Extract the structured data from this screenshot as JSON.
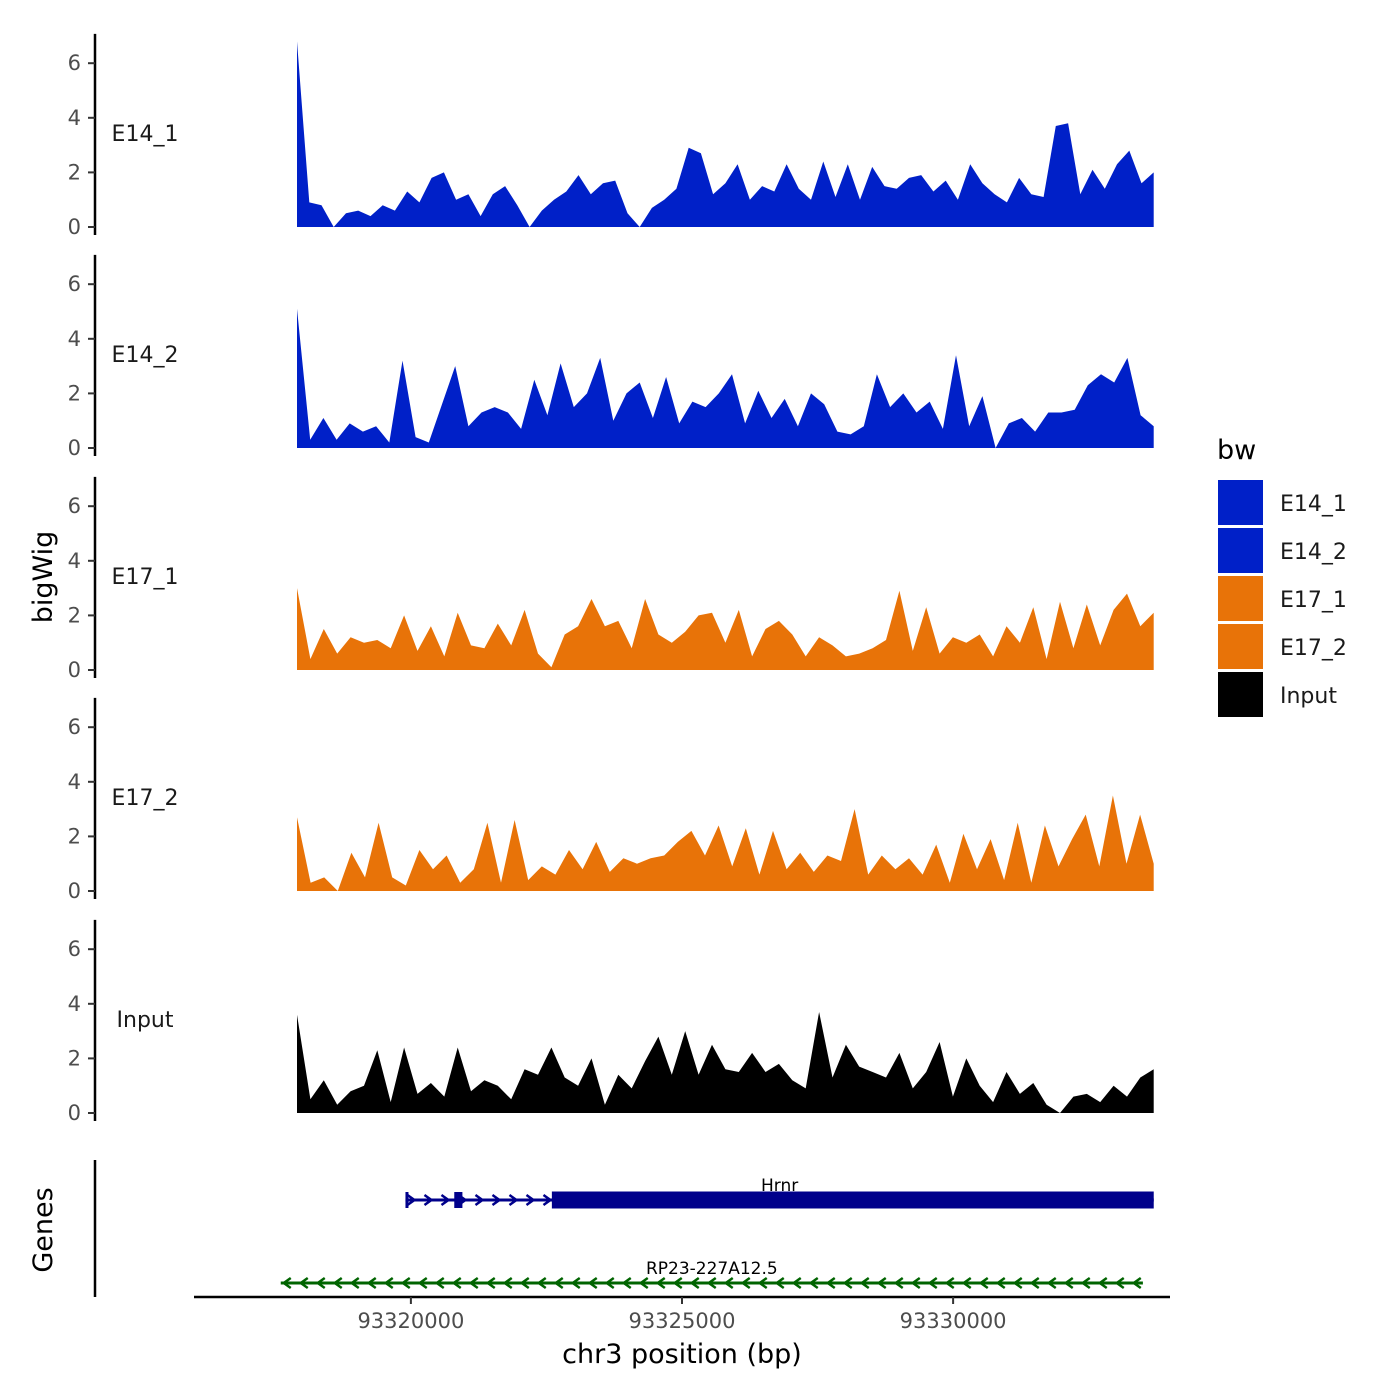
{
  "chart_data": {
    "type": "area",
    "title": "",
    "ylabel": "bigWig",
    "xlabel": "chr3 position (bp)",
    "ylim": [
      0,
      7
    ],
    "y_ticks": [
      0,
      2,
      4,
      6
    ],
    "x_range": [
      93316000,
      93334000
    ],
    "x_ticks": [
      93320000,
      93325000,
      93330000
    ],
    "x_tick_labels": [
      "93320000",
      "93325000",
      "93330000"
    ],
    "data_range": [
      93317900,
      93333700
    ],
    "legend": {
      "title": "bw",
      "position": "right",
      "entries": [
        {
          "name": "E14_1",
          "color": "#0020C8"
        },
        {
          "name": "E14_2",
          "color": "#0020C8"
        },
        {
          "name": "E17_1",
          "color": "#E87308"
        },
        {
          "name": "E17_2",
          "color": "#E87308"
        },
        {
          "name": "Input",
          "color": "#000000"
        }
      ]
    },
    "series": [
      {
        "name": "E14_1",
        "color": "#0020C8",
        "values": [
          6.8,
          0.9,
          0.8,
          0.0,
          0.5,
          0.6,
          0.4,
          0.8,
          0.6,
          1.3,
          0.9,
          1.8,
          2.0,
          1.0,
          1.2,
          0.4,
          1.2,
          1.5,
          0.8,
          0.0,
          0.6,
          1.0,
          1.3,
          1.9,
          1.2,
          1.6,
          1.7,
          0.5,
          0.0,
          0.7,
          1.0,
          1.4,
          2.9,
          2.7,
          1.2,
          1.6,
          2.3,
          1.0,
          1.5,
          1.3,
          2.3,
          1.4,
          1.0,
          2.4,
          1.1,
          2.3,
          1.0,
          2.2,
          1.5,
          1.4,
          1.8,
          1.9,
          1.3,
          1.7,
          1.0,
          2.3,
          1.6,
          1.2,
          0.9,
          1.8,
          1.2,
          1.1,
          3.7,
          3.8,
          1.2,
          2.1,
          1.4,
          2.3,
          2.8,
          1.6,
          2.0
        ]
      },
      {
        "name": "E14_2",
        "color": "#0020C8",
        "values": [
          5.1,
          0.3,
          1.1,
          0.3,
          0.9,
          0.6,
          0.8,
          0.2,
          3.2,
          0.4,
          0.2,
          1.6,
          3.0,
          0.8,
          1.3,
          1.5,
          1.3,
          0.7,
          2.5,
          1.2,
          3.1,
          1.5,
          2.0,
          3.3,
          1.0,
          2.0,
          2.4,
          1.1,
          2.6,
          0.9,
          1.7,
          1.5,
          2.0,
          2.7,
          0.9,
          2.1,
          1.1,
          1.8,
          0.8,
          2.0,
          1.6,
          0.6,
          0.5,
          0.8,
          2.7,
          1.5,
          2.0,
          1.3,
          1.7,
          0.7,
          3.4,
          0.8,
          1.9,
          0.0,
          0.9,
          1.1,
          0.6,
          1.3,
          1.3,
          1.4,
          2.3,
          2.7,
          2.4,
          3.3,
          1.2,
          0.8
        ]
      },
      {
        "name": "E17_1",
        "color": "#E87308",
        "values": [
          3.0,
          0.4,
          1.5,
          0.6,
          1.2,
          1.0,
          1.1,
          0.8,
          2.0,
          0.7,
          1.6,
          0.5,
          2.1,
          0.9,
          0.8,
          1.7,
          0.9,
          2.2,
          0.6,
          0.1,
          1.3,
          1.6,
          2.6,
          1.6,
          1.8,
          0.8,
          2.6,
          1.3,
          1.0,
          1.4,
          2.0,
          2.1,
          1.0,
          2.2,
          0.5,
          1.5,
          1.8,
          1.3,
          0.5,
          1.2,
          0.9,
          0.5,
          0.6,
          0.8,
          1.1,
          2.9,
          0.7,
          2.3,
          0.6,
          1.2,
          1.0,
          1.3,
          0.5,
          1.6,
          1.0,
          2.3,
          0.4,
          2.5,
          0.8,
          2.4,
          0.9,
          2.2,
          2.8,
          1.6,
          2.1
        ]
      },
      {
        "name": "E17_2",
        "color": "#E87308",
        "values": [
          2.7,
          0.3,
          0.5,
          0.0,
          1.4,
          0.5,
          2.5,
          0.5,
          0.2,
          1.5,
          0.8,
          1.3,
          0.3,
          0.8,
          2.5,
          0.3,
          2.6,
          0.4,
          0.9,
          0.6,
          1.5,
          0.8,
          1.8,
          0.7,
          1.2,
          1.0,
          1.2,
          1.3,
          1.8,
          2.2,
          1.3,
          2.4,
          0.9,
          2.3,
          0.6,
          2.2,
          0.8,
          1.4,
          0.7,
          1.3,
          1.1,
          3.0,
          0.6,
          1.3,
          0.8,
          1.2,
          0.6,
          1.7,
          0.3,
          2.1,
          0.8,
          1.9,
          0.4,
          2.5,
          0.3,
          2.4,
          0.9,
          1.9,
          2.8,
          0.9,
          3.5,
          1.0,
          2.8,
          1.0
        ]
      },
      {
        "name": "Input",
        "color": "#000000",
        "values": [
          3.6,
          0.5,
          1.2,
          0.3,
          0.8,
          1.0,
          2.3,
          0.4,
          2.4,
          0.7,
          1.1,
          0.6,
          2.4,
          0.8,
          1.2,
          1.0,
          0.5,
          1.6,
          1.4,
          2.4,
          1.3,
          1.0,
          2.0,
          0.3,
          1.4,
          0.9,
          1.9,
          2.8,
          1.4,
          3.0,
          1.4,
          2.5,
          1.6,
          1.5,
          2.2,
          1.5,
          1.8,
          1.2,
          0.9,
          3.7,
          1.3,
          2.5,
          1.7,
          1.5,
          1.3,
          2.2,
          0.9,
          1.5,
          2.6,
          0.6,
          2.0,
          1.0,
          0.4,
          1.5,
          0.7,
          1.1,
          0.3,
          0.0,
          0.6,
          0.7,
          0.4,
          1.0,
          0.6,
          1.3,
          1.6
        ]
      }
    ],
    "genes_panel": {
      "ylabel": "Genes",
      "genes": [
        {
          "name": "Hrnr",
          "start": 93319900,
          "end": 93333700,
          "strand": "+",
          "color": "#00008B",
          "exons": [
            [
              93319900,
              93319950
            ],
            [
              93320800,
              93320950
            ],
            [
              93322600,
              93333700
            ]
          ]
        },
        {
          "name": "RP23-227A12.5",
          "start": 93317600,
          "end": 93333500,
          "strand": "-",
          "color": "#006400",
          "exons": []
        }
      ]
    }
  }
}
